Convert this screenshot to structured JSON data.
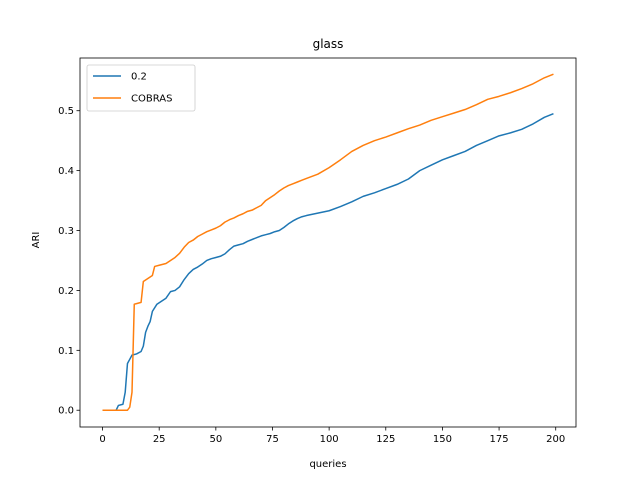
{
  "chart_data": {
    "type": "line",
    "title": "glass",
    "xlabel": "queries",
    "ylabel": "ARI",
    "xlim": [
      -9.95,
      208.95
    ],
    "ylim": [
      -0.028,
      0.588
    ],
    "xticks": [
      0,
      25,
      50,
      75,
      100,
      125,
      150,
      175,
      200
    ],
    "yticks": [
      0.0,
      0.1,
      0.2,
      0.3,
      0.4,
      0.5
    ],
    "ytick_labels": [
      "0.0",
      "0.1",
      "0.2",
      "0.3",
      "0.4",
      "0.5"
    ],
    "grid": false,
    "legend_position": "upper-left",
    "series": [
      {
        "name": "0.2",
        "color": "#1f77b4",
        "points": [
          [
            0,
            0.0
          ],
          [
            6,
            0.0
          ],
          [
            7,
            0.008
          ],
          [
            9,
            0.01
          ],
          [
            10,
            0.03
          ],
          [
            11,
            0.078
          ],
          [
            12,
            0.085
          ],
          [
            13,
            0.092
          ],
          [
            15,
            0.094
          ],
          [
            17,
            0.098
          ],
          [
            18,
            0.107
          ],
          [
            19,
            0.13
          ],
          [
            20,
            0.14
          ],
          [
            21,
            0.148
          ],
          [
            22,
            0.165
          ],
          [
            24,
            0.177
          ],
          [
            26,
            0.182
          ],
          [
            28,
            0.187
          ],
          [
            30,
            0.198
          ],
          [
            32,
            0.2
          ],
          [
            34,
            0.206
          ],
          [
            36,
            0.218
          ],
          [
            38,
            0.228
          ],
          [
            40,
            0.235
          ],
          [
            42,
            0.239
          ],
          [
            44,
            0.244
          ],
          [
            46,
            0.25
          ],
          [
            48,
            0.253
          ],
          [
            50,
            0.255
          ],
          [
            52,
            0.257
          ],
          [
            54,
            0.261
          ],
          [
            56,
            0.268
          ],
          [
            58,
            0.274
          ],
          [
            60,
            0.276
          ],
          [
            62,
            0.278
          ],
          [
            64,
            0.282
          ],
          [
            66,
            0.285
          ],
          [
            68,
            0.288
          ],
          [
            70,
            0.291
          ],
          [
            72,
            0.293
          ],
          [
            74,
            0.295
          ],
          [
            76,
            0.298
          ],
          [
            78,
            0.3
          ],
          [
            80,
            0.305
          ],
          [
            82,
            0.311
          ],
          [
            84,
            0.316
          ],
          [
            86,
            0.32
          ],
          [
            88,
            0.323
          ],
          [
            90,
            0.325
          ],
          [
            95,
            0.329
          ],
          [
            100,
            0.333
          ],
          [
            105,
            0.34
          ],
          [
            110,
            0.348
          ],
          [
            115,
            0.357
          ],
          [
            120,
            0.363
          ],
          [
            125,
            0.37
          ],
          [
            130,
            0.377
          ],
          [
            135,
            0.386
          ],
          [
            140,
            0.4
          ],
          [
            145,
            0.409
          ],
          [
            150,
            0.418
          ],
          [
            155,
            0.425
          ],
          [
            160,
            0.432
          ],
          [
            165,
            0.442
          ],
          [
            170,
            0.45
          ],
          [
            175,
            0.458
          ],
          [
            180,
            0.463
          ],
          [
            185,
            0.469
          ],
          [
            190,
            0.478
          ],
          [
            195,
            0.489
          ],
          [
            199,
            0.495
          ]
        ]
      },
      {
        "name": "COBRAS",
        "color": "#ff7f0e",
        "points": [
          [
            0,
            0.0
          ],
          [
            11,
            0.0
          ],
          [
            12,
            0.005
          ],
          [
            13,
            0.03
          ],
          [
            14,
            0.177
          ],
          [
            15,
            0.178
          ],
          [
            17,
            0.18
          ],
          [
            18,
            0.215
          ],
          [
            20,
            0.22
          ],
          [
            22,
            0.225
          ],
          [
            23,
            0.24
          ],
          [
            25,
            0.242
          ],
          [
            28,
            0.245
          ],
          [
            30,
            0.25
          ],
          [
            32,
            0.255
          ],
          [
            34,
            0.262
          ],
          [
            36,
            0.272
          ],
          [
            38,
            0.28
          ],
          [
            40,
            0.284
          ],
          [
            42,
            0.29
          ],
          [
            44,
            0.294
          ],
          [
            46,
            0.298
          ],
          [
            48,
            0.301
          ],
          [
            50,
            0.304
          ],
          [
            52,
            0.308
          ],
          [
            54,
            0.314
          ],
          [
            56,
            0.318
          ],
          [
            58,
            0.321
          ],
          [
            60,
            0.325
          ],
          [
            62,
            0.328
          ],
          [
            64,
            0.332
          ],
          [
            66,
            0.334
          ],
          [
            68,
            0.338
          ],
          [
            70,
            0.342
          ],
          [
            72,
            0.35
          ],
          [
            74,
            0.355
          ],
          [
            76,
            0.36
          ],
          [
            78,
            0.366
          ],
          [
            80,
            0.371
          ],
          [
            82,
            0.375
          ],
          [
            84,
            0.378
          ],
          [
            86,
            0.381
          ],
          [
            88,
            0.384
          ],
          [
            90,
            0.387
          ],
          [
            95,
            0.394
          ],
          [
            100,
            0.405
          ],
          [
            105,
            0.418
          ],
          [
            110,
            0.432
          ],
          [
            115,
            0.442
          ],
          [
            120,
            0.45
          ],
          [
            125,
            0.456
          ],
          [
            130,
            0.463
          ],
          [
            135,
            0.47
          ],
          [
            140,
            0.476
          ],
          [
            145,
            0.484
          ],
          [
            150,
            0.49
          ],
          [
            155,
            0.496
          ],
          [
            160,
            0.502
          ],
          [
            165,
            0.51
          ],
          [
            170,
            0.519
          ],
          [
            175,
            0.524
          ],
          [
            180,
            0.53
          ],
          [
            185,
            0.537
          ],
          [
            190,
            0.545
          ],
          [
            195,
            0.555
          ],
          [
            199,
            0.561
          ]
        ]
      }
    ]
  }
}
